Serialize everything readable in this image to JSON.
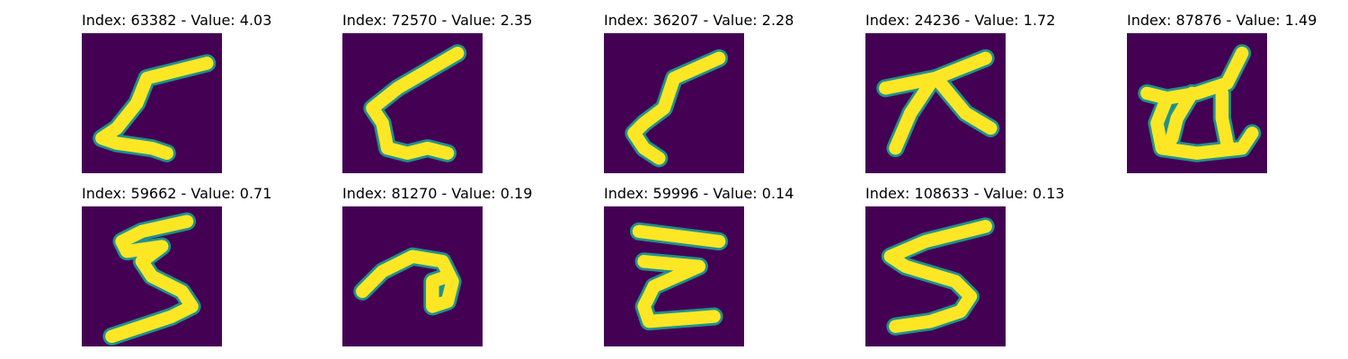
{
  "figure": {
    "background_color": "#440154",
    "stroke_color": "#fde725",
    "stroke_edge_color": "#21918c",
    "panels": [
      {
        "title": "Index: 63382 - Value: 4.03",
        "index": 63382,
        "value": 4.03
      },
      {
        "title": "Index: 72570 - Value: 2.35",
        "index": 72570,
        "value": 2.35
      },
      {
        "title": "Index: 36207 - Value: 2.28",
        "index": 36207,
        "value": 2.28
      },
      {
        "title": "Index: 24236 - Value: 1.72",
        "index": 24236,
        "value": 1.72
      },
      {
        "title": "Index: 87876 - Value: 1.49",
        "index": 87876,
        "value": 1.49
      },
      {
        "title": "Index: 59662 - Value: 0.71",
        "index": 59662,
        "value": 0.71
      },
      {
        "title": "Index: 81270 - Value: 0.19",
        "index": 81270,
        "value": 0.19
      },
      {
        "title": "Index: 59996 - Value: 0.14",
        "index": 59996,
        "value": 0.14
      },
      {
        "title": "Index: 108633 - Value: 0.13",
        "index": 108633,
        "value": 0.13
      }
    ]
  }
}
